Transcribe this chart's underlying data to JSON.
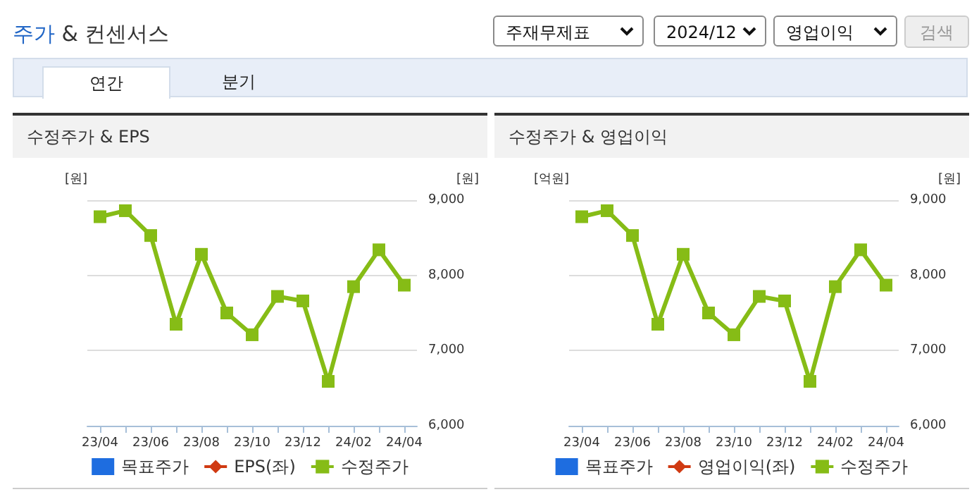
{
  "chart_data": [
    {
      "type": "other",
      "title": "주가 & 컨센서스",
      "annotations": [
        "주재무제표",
        "2024/12",
        "영업이익",
        "검색",
        "연간",
        "분기"
      ]
    },
    {
      "type": "line",
      "title": "수정주가 & EPS",
      "ylabel": "[원]",
      "y2label": "[원]",
      "categories": [
        "23/04",
        null,
        "23/06",
        null,
        "23/08",
        null,
        "23/10",
        null,
        "23/12",
        null,
        "24/02",
        null,
        "24/04"
      ],
      "series": [
        {
          "name": "목표주가",
          "type": "bar",
          "color": "#1e6de0",
          "values": [
            null,
            null,
            null,
            null,
            null,
            null,
            null,
            null,
            null,
            null,
            null,
            null,
            null
          ]
        },
        {
          "name": "EPS(좌)",
          "type": "line",
          "marker": "diamond",
          "color": "#d03a12",
          "values": [
            null,
            null,
            null,
            null,
            null,
            null,
            null,
            null,
            null,
            null,
            null,
            null,
            null
          ]
        },
        {
          "name": "수정주가",
          "type": "line",
          "marker": "square",
          "axis": "y2",
          "color": "#86bc16",
          "values": [
            8780,
            8860,
            8530,
            7350,
            8280,
            7500,
            7210,
            7720,
            7660,
            6590,
            7850,
            8340,
            7870
          ]
        }
      ],
      "y2lim": [
        6000,
        9000
      ],
      "y2ticks": [
        {
          "value": 6000,
          "label": "6,000"
        },
        {
          "value": 7000,
          "label": "7,000"
        },
        {
          "value": 8000,
          "label": "8,000"
        },
        {
          "value": 9000,
          "label": "9,000"
        }
      ],
      "grid": true,
      "legend": "bottom"
    },
    {
      "type": "line",
      "title": "수정주가 & 영업이익",
      "ylabel": "[억원]",
      "y2label": "[원]",
      "categories": [
        "23/04",
        null,
        "23/06",
        null,
        "23/08",
        null,
        "23/10",
        null,
        "23/12",
        null,
        "24/02",
        null,
        "24/04"
      ],
      "series": [
        {
          "name": "목표주가",
          "type": "bar",
          "color": "#1e6de0",
          "values": [
            null,
            null,
            null,
            null,
            null,
            null,
            null,
            null,
            null,
            null,
            null,
            null,
            null
          ]
        },
        {
          "name": "영업이익(좌)",
          "type": "line",
          "marker": "diamond",
          "color": "#d03a12",
          "values": [
            null,
            null,
            null,
            null,
            null,
            null,
            null,
            null,
            null,
            null,
            null,
            null,
            null
          ]
        },
        {
          "name": "수정주가",
          "type": "line",
          "marker": "square",
          "axis": "y2",
          "color": "#86bc16",
          "values": [
            8780,
            8860,
            8530,
            7350,
            8280,
            7500,
            7210,
            7720,
            7660,
            6590,
            7850,
            8340,
            7870
          ]
        }
      ],
      "y2lim": [
        6000,
        9000
      ],
      "y2ticks": [
        {
          "value": 6000,
          "label": "6,000"
        },
        {
          "value": 7000,
          "label": "7,000"
        },
        {
          "value": 8000,
          "label": "8,000"
        },
        {
          "value": 9000,
          "label": "9,000"
        }
      ],
      "grid": true,
      "legend": "bottom"
    }
  ]
}
